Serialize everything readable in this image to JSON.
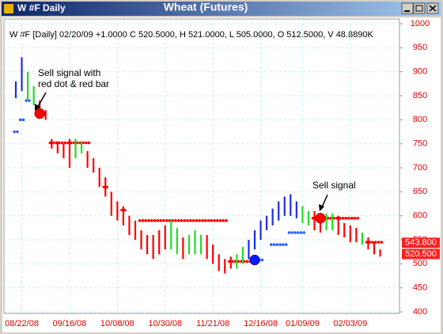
{
  "chart_data": {
    "type": "hilo",
    "window_label": "W #F Daily",
    "title": "Wheat (Futures)",
    "header_text": "W #F [Daily] 02/20/09 +1.0000 C 520.5000, H 521.0000, L 505.0000, O 512.5000, V 48.8890K",
    "categories": [
      null,
      "08/22/08",
      null,
      null,
      null,
      null,
      null,
      null,
      null,
      "09/16/08",
      null,
      null,
      null,
      null,
      null,
      null,
      null,
      "10/08/08",
      null,
      null,
      null,
      null,
      null,
      null,
      null,
      "10/30/08",
      null,
      null,
      null,
      null,
      null,
      null,
      null,
      "11/21/08",
      null,
      null,
      null,
      null,
      null,
      null,
      null,
      "12/16/08",
      null,
      null,
      null,
      null,
      null,
      null,
      "01/09/09",
      null,
      null,
      null,
      null,
      null,
      null,
      null,
      "02/03/09",
      null,
      null,
      null,
      null,
      null
    ],
    "high": [
      880,
      930,
      900,
      870,
      840,
      820,
      760,
      755,
      750,
      760,
      760,
      755,
      735,
      720,
      700,
      680,
      650,
      630,
      620,
      600,
      590,
      570,
      560,
      560,
      570,
      580,
      590,
      575,
      555,
      560,
      570,
      560,
      560,
      540,
      520,
      510,
      515,
      520,
      535,
      550,
      570,
      590,
      600,
      615,
      630,
      640,
      645,
      630,
      620,
      610,
      610,
      600,
      605,
      605,
      600,
      585,
      580,
      575,
      565,
      555,
      545,
      530
    ],
    "low": [
      845,
      860,
      840,
      830,
      810,
      800,
      740,
      730,
      720,
      700,
      720,
      730,
      700,
      690,
      660,
      640,
      600,
      590,
      580,
      560,
      550,
      530,
      520,
      510,
      520,
      530,
      530,
      520,
      510,
      520,
      520,
      520,
      510,
      500,
      485,
      480,
      490,
      490,
      500,
      510,
      530,
      550,
      570,
      580,
      590,
      600,
      600,
      595,
      585,
      580,
      570,
      565,
      570,
      570,
      560,
      555,
      545,
      545,
      540,
      530,
      520,
      515
    ],
    "colors": [
      "#1c2ce0",
      "#1c2ce0",
      "#22dd22",
      "#22dd22",
      "#ff0000",
      "#ff0000",
      "#ff0000",
      "#ff0000",
      "#ff0000",
      "#ff0000",
      "#22dd22",
      "#22dd22",
      "#ff0000",
      "#ff0000",
      "#ff0000",
      "#ff0000",
      "#ff0000",
      "#ff0000",
      "#ff0000",
      "#ff0000",
      "#ff0000",
      "#ff0000",
      "#ff0000",
      "#ff0000",
      "#ff0000",
      "#ff0000",
      "#22dd22",
      "#22dd22",
      "#ff0000",
      "#22dd22",
      "#22dd22",
      "#22dd22",
      "#ff0000",
      "#ff0000",
      "#ff0000",
      "#ff0000",
      "#ff0000",
      "#22dd22",
      "#22dd22",
      "#1c2ce0",
      "#1c2ce0",
      "#1c2ce0",
      "#1c2ce0",
      "#1c2ce0",
      "#1c2ce0",
      "#1c2ce0",
      "#1c2ce0",
      "#1c2ce0",
      "#22dd22",
      "#22dd22",
      "#ff0000",
      "#ff0000",
      "#22dd22",
      "#22dd22",
      "#ff0000",
      "#ff0000",
      "#ff0000",
      "#ff0000",
      "#22dd22",
      "#ff0000",
      "#ff0000",
      "#ff0000"
    ],
    "stops": [
      {
        "color": "#ff0000",
        "values": [
          null,
          null,
          null,
          null,
          null,
          null,
          752,
          752,
          752,
          752,
          752,
          752,
          752,
          null,
          null,
          660,
          null,
          null,
          612,
          null,
          null,
          590,
          590,
          590,
          590,
          590,
          590,
          590,
          590,
          590,
          590,
          590,
          590,
          590,
          590,
          590,
          505,
          505,
          505,
          505,
          null,
          null,
          null,
          null,
          null,
          null,
          null,
          null,
          null,
          null,
          595,
          595,
          595,
          595,
          595,
          595,
          595,
          595,
          null,
          545,
          545,
          545
        ]
      },
      {
        "color": "#3060ff",
        "values": [
          775,
          800,
          840,
          null,
          null,
          null,
          null,
          null,
          null,
          null,
          null,
          null,
          null,
          null,
          null,
          null,
          null,
          null,
          null,
          null,
          null,
          null,
          null,
          null,
          null,
          null,
          null,
          null,
          null,
          null,
          null,
          null,
          null,
          null,
          null,
          null,
          null,
          null,
          null,
          null,
          508,
          508,
          null,
          540,
          540,
          540,
          565,
          565,
          565,
          null,
          null,
          null,
          null,
          null,
          null,
          null,
          null,
          null,
          null,
          null,
          null,
          null
        ]
      }
    ],
    "signals": [
      {
        "x": 4,
        "value": 813,
        "color": "#ff0000"
      },
      {
        "x": 40,
        "value": 508,
        "color": "#0a1aff"
      },
      {
        "x": 51,
        "value": 595,
        "color": "#ff0000"
      }
    ],
    "annotations": [
      {
        "lines": [
          "Sell signal with",
          "red dot & red bar"
        ]
      },
      {
        "lines": [
          "Sell signal"
        ]
      }
    ],
    "price_tags": [
      {
        "value": 543.8,
        "label": "543.800"
      },
      {
        "value": 520.5,
        "label": "520.500"
      }
    ],
    "ylim": [
      400,
      1000
    ],
    "yticks": [
      400,
      450,
      500,
      550,
      600,
      650,
      700,
      750,
      800,
      850,
      900,
      950,
      1000
    ],
    "grid": true
  }
}
